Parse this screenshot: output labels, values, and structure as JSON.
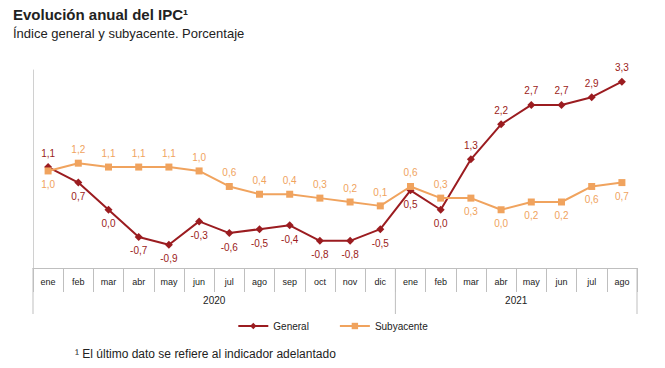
{
  "chart_data": {
    "type": "line",
    "title": "Evolución anual del IPC¹",
    "subtitle": "Índice general y subyacente. Porcentaje",
    "note": "¹ El último dato se refiere al indicador adelantado",
    "categories": [
      "ene",
      "feb",
      "mar",
      "abr",
      "may",
      "jun",
      "jul",
      "ago",
      "sep",
      "oct",
      "nov",
      "dic",
      "ene",
      "feb",
      "mar",
      "abr",
      "may",
      "jun",
      "jul",
      "ago"
    ],
    "category_groups": [
      {
        "label": "2020",
        "size": 12
      },
      {
        "label": "2021",
        "size": 8
      }
    ],
    "series": [
      {
        "name": "General",
        "color": "#9b1c20",
        "marker": "diamond",
        "line_style": "solid",
        "values": [
          1.1,
          0.7,
          0.0,
          -0.7,
          -0.9,
          -0.3,
          -0.6,
          -0.5,
          -0.4,
          -0.8,
          -0.8,
          -0.5,
          0.5,
          0.0,
          1.3,
          2.2,
          2.7,
          2.7,
          2.9,
          3.3
        ],
        "value_labels": [
          "1,1",
          "0,7",
          "0,0",
          "-0,7",
          "-0,9",
          "-0,3",
          "-0,6",
          "-0,5",
          "-0,4",
          "-0,8",
          "-0,8",
          "-0,5",
          "0,5",
          "0,0",
          "1,3",
          "2,2",
          "2,7",
          "2,7",
          "2,9",
          "3,3"
        ]
      },
      {
        "name": "Subyacente",
        "color": "#f0a35e",
        "marker": "square",
        "line_style": "solid",
        "values": [
          1.0,
          1.2,
          1.1,
          1.1,
          1.1,
          1.0,
          0.6,
          0.4,
          0.4,
          0.3,
          0.2,
          0.1,
          0.6,
          0.3,
          0.3,
          0.0,
          0.2,
          0.2,
          0.6,
          0.7
        ],
        "value_labels": [
          "1,0",
          "1,2",
          "1,1",
          "1,1",
          "1,1",
          "1,0",
          "0,6",
          "0,4",
          "0,4",
          "0,3",
          "0,2",
          "0,1",
          "0,6",
          "0,3",
          "0,3",
          "0,0",
          "0,2",
          "0,2",
          "0,6",
          "0,7"
        ]
      }
    ],
    "ylim": [
      -1.5,
      3.6
    ],
    "tick_labels": "x",
    "data_labels": true,
    "legend": "bottom",
    "grid": false
  }
}
